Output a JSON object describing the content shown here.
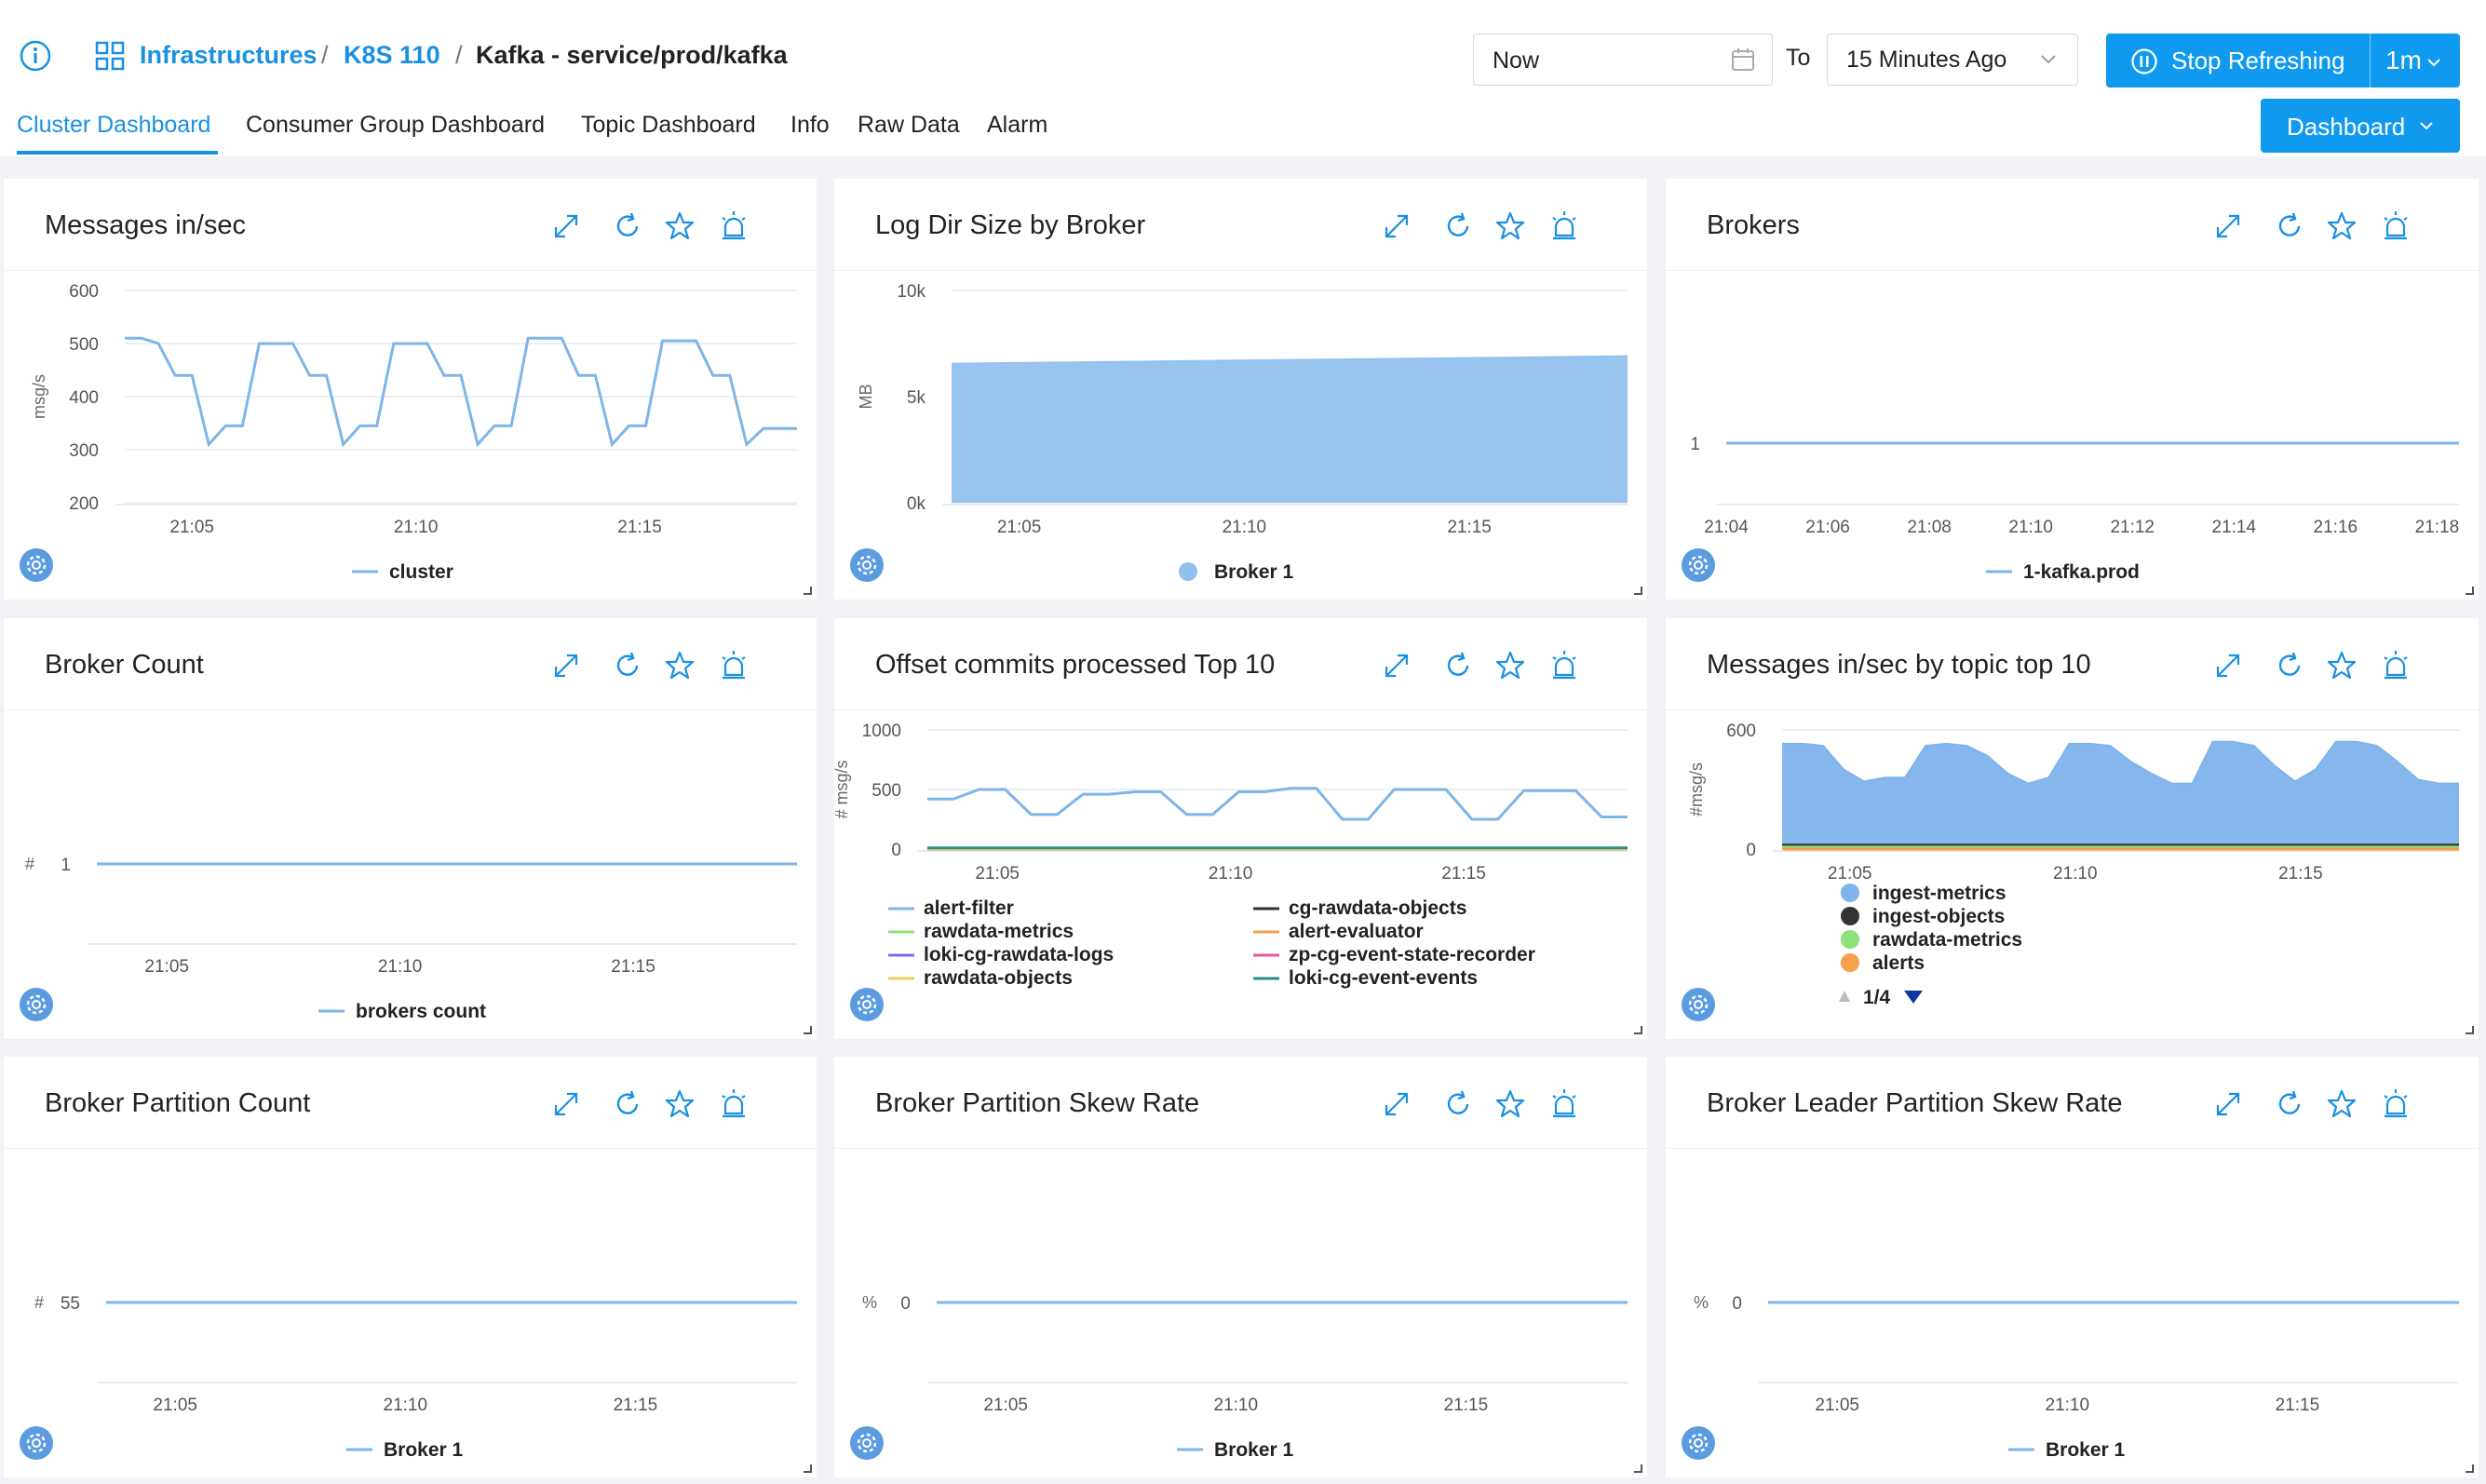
{
  "header": {
    "breadcrumb": [
      "Infrastructures",
      "K8S 110",
      "Kafka - service/prod/kafka"
    ],
    "time_to": "Now",
    "to_label": "To",
    "time_from": "15 Minutes Ago",
    "refresh_label": "Stop Refreshing",
    "refresh_interval": "1m",
    "dashboard_label": "Dashboard"
  },
  "tabs": [
    {
      "label": "Cluster Dashboard",
      "active": true
    },
    {
      "label": "Consumer Group Dashboard"
    },
    {
      "label": "Topic Dashboard"
    },
    {
      "label": "Info"
    },
    {
      "label": "Raw Data"
    },
    {
      "label": "Alarm"
    }
  ],
  "colors": {
    "accent": "#1a90e0",
    "button": "#0f9af0",
    "series_blue": "#7eb5e8",
    "area_fill": "#93c1ef",
    "green": "#39a852",
    "dark": "#333333"
  },
  "panels": [
    {
      "title": "Messages in/sec",
      "chart_data": {
        "type": "line",
        "ylabel": "msg/s",
        "ylim": [
          200,
          600
        ],
        "yticks": [
          "600",
          "500",
          "400",
          "300",
          "200"
        ],
        "xticks": [
          "21:05",
          "21:10",
          "21:15"
        ],
        "series": [
          {
            "name": "cluster",
            "color": "#7eb5e8",
            "values": [
              510,
              510,
              500,
              440,
              440,
              310,
              345,
              345,
              500,
              500,
              500,
              440,
              440,
              310,
              345,
              345,
              500,
              500,
              500,
              440,
              440,
              310,
              345,
              345,
              510,
              510,
              510,
              440,
              440,
              310,
              345,
              345,
              505,
              505,
              505,
              440,
              440,
              310,
              340,
              340,
              340
            ]
          }
        ],
        "legend": [
          "cluster"
        ]
      }
    },
    {
      "title": "Log Dir Size by Broker",
      "chart_data": {
        "type": "area",
        "ylabel": "MB",
        "ylim": [
          0,
          10000
        ],
        "yticks": [
          "10k",
          "5k",
          "0k"
        ],
        "xticks": [
          "21:05",
          "21:10",
          "21:15"
        ],
        "series": [
          {
            "name": "Broker 1",
            "color": "#93c1ef",
            "values": [
              6550,
              6600,
              6650,
              6700,
              6750,
              6800,
              6850,
              6900
            ]
          }
        ],
        "legend": [
          "Broker 1"
        ]
      }
    },
    {
      "title": "Brokers",
      "chart_data": {
        "type": "line",
        "ylabel": "",
        "ylim": [
          0,
          2
        ],
        "yticks": [
          "1"
        ],
        "xticks": [
          "21:04",
          "21:06",
          "21:08",
          "21:10",
          "21:12",
          "21:14",
          "21:16",
          "21:18"
        ],
        "series": [
          {
            "name": "1-kafka.prod",
            "color": "#7eb5e8",
            "values": [
              1,
              1
            ]
          }
        ],
        "legend": [
          "1-kafka.prod"
        ]
      }
    },
    {
      "title": "Broker Count",
      "chart_data": {
        "type": "line",
        "ylabel": "#",
        "ylim": [
          0,
          2
        ],
        "yticks": [
          "1"
        ],
        "xticks": [
          "21:05",
          "21:10",
          "21:15"
        ],
        "series": [
          {
            "name": "brokers count",
            "color": "#7eb5e8",
            "values": [
              1,
              1
            ]
          }
        ],
        "legend": [
          "brokers count"
        ]
      }
    },
    {
      "title": "Offset commits processed Top 10",
      "chart_data": {
        "type": "line",
        "ylabel": "# msg/s",
        "ylim": [
          0,
          1000
        ],
        "yticks": [
          "1000",
          "500",
          "0"
        ],
        "xticks": [
          "21:05",
          "21:10",
          "21:15"
        ],
        "series": [
          {
            "name": "alert-filter",
            "color": "#7eb5e8",
            "values": [
              420,
              420,
              500,
              500,
              290,
              290,
              460,
              460,
              480,
              480,
              290,
              290,
              480,
              480,
              510,
              510,
              250,
              250,
              500,
              500,
              500,
              250,
              250,
              490,
              490,
              490,
              270,
              270
            ]
          },
          {
            "name": "cg-rawdata-objects",
            "color": "#333333",
            "values": [
              5,
              5
            ]
          },
          {
            "name": "rawdata-metrics",
            "color": "#8ee07a",
            "values": [
              8,
              8
            ]
          },
          {
            "name": "alert-evaluator",
            "color": "#f0a050",
            "values": [
              4,
              4
            ]
          },
          {
            "name": "loki-cg-rawdata-logs",
            "color": "#7a6ee8",
            "values": [
              3,
              3
            ]
          },
          {
            "name": "zp-cg-event-state-recorder",
            "color": "#e85aa0",
            "values": [
              2,
              2
            ]
          },
          {
            "name": "rawdata-objects",
            "color": "#e8d25a",
            "values": [
              3,
              3
            ]
          },
          {
            "name": "loki-cg-event-events",
            "color": "#2a8c80",
            "values": [
              10,
              10
            ]
          }
        ],
        "legend": [
          "alert-filter",
          "cg-rawdata-objects",
          "rawdata-metrics",
          "alert-evaluator",
          "loki-cg-rawdata-logs",
          "zp-cg-event-state-recorder",
          "rawdata-objects",
          "loki-cg-event-events"
        ]
      }
    },
    {
      "title": "Messages in/sec by topic top 10",
      "chart_data": {
        "type": "area",
        "ylabel": "#msg/s",
        "ylim": [
          0,
          600
        ],
        "yticks": [
          "600",
          "0"
        ],
        "xticks": [
          "21:05",
          "21:10",
          "21:15"
        ],
        "series": [
          {
            "name": "ingest-metrics",
            "color": "#7eb3ec",
            "values": [
              530,
              530,
              520,
              400,
              340,
              360,
              360,
              520,
              530,
              520,
              470,
              380,
              330,
              360,
              530,
              530,
              520,
              440,
              380,
              330,
              330,
              540,
              540,
              520,
              420,
              340,
              400,
              540,
              540,
              520,
              440,
              350,
              330,
              330
            ]
          },
          {
            "name": "ingest-objects",
            "color": "#333333",
            "values": [
              20,
              20
            ]
          },
          {
            "name": "rawdata-metrics",
            "color": "#8ee07a",
            "values": [
              10,
              10
            ]
          },
          {
            "name": "alerts",
            "color": "#f5a04a",
            "values": [
              0,
              0
            ]
          }
        ],
        "legend": [
          "ingest-metrics",
          "ingest-objects",
          "rawdata-metrics",
          "alerts"
        ],
        "legend_page": "1/4"
      }
    },
    {
      "title": "Broker Partition Count",
      "chart_data": {
        "type": "line",
        "ylabel": "#",
        "ylim": [
          0,
          110
        ],
        "yticks": [
          "55"
        ],
        "xticks": [
          "21:05",
          "21:10",
          "21:15"
        ],
        "series": [
          {
            "name": "Broker 1",
            "color": "#7eb5e8",
            "values": [
              55,
              55
            ]
          }
        ],
        "legend": [
          "Broker 1"
        ]
      }
    },
    {
      "title": "Broker Partition Skew Rate",
      "chart_data": {
        "type": "line",
        "ylabel": "%",
        "ylim": [
          -1,
          1
        ],
        "yticks": [
          "0"
        ],
        "xticks": [
          "21:05",
          "21:10",
          "21:15"
        ],
        "series": [
          {
            "name": "Broker 1",
            "color": "#7eb5e8",
            "values": [
              0,
              0
            ]
          }
        ],
        "legend": [
          "Broker 1"
        ]
      }
    },
    {
      "title": "Broker Leader Partition Skew Rate",
      "chart_data": {
        "type": "line",
        "ylabel": "%",
        "ylim": [
          -1,
          1
        ],
        "yticks": [
          "0"
        ],
        "xticks": [
          "21:05",
          "21:10",
          "21:15"
        ],
        "series": [
          {
            "name": "Broker 1",
            "color": "#7eb5e8",
            "values": [
              0,
              0
            ]
          }
        ],
        "legend": [
          "Broker 1"
        ]
      }
    }
  ]
}
